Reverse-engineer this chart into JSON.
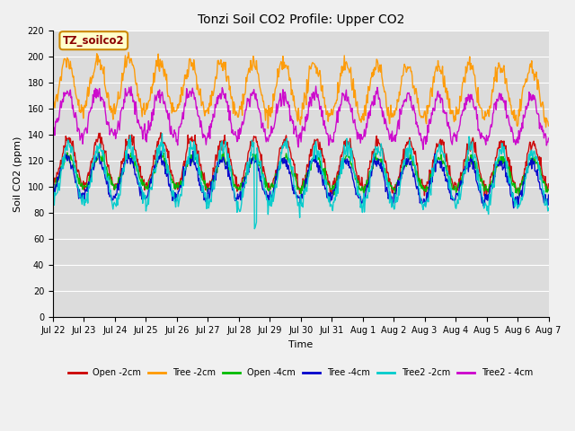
{
  "title": "Tonzi Soil CO2 Profile: Upper CO2",
  "ylabel": "Soil CO2 (ppm)",
  "xlabel": "Time",
  "ylim": [
    0,
    220
  ],
  "yticks": [
    0,
    20,
    40,
    60,
    80,
    100,
    120,
    140,
    160,
    180,
    200,
    220
  ],
  "fig_bg_color": "#f0f0f0",
  "plot_bg_color": "#dcdcdc",
  "grid_color": "#ffffff",
  "series": [
    {
      "label": "Open -2cm",
      "color": "#cc0000",
      "lw": 1.0
    },
    {
      "label": "Tree -2cm",
      "color": "#ff9900",
      "lw": 1.0
    },
    {
      "label": "Open -4cm",
      "color": "#00bb00",
      "lw": 1.0
    },
    {
      "label": "Tree -4cm",
      "color": "#0000cc",
      "lw": 1.0
    },
    {
      "label": "Tree2 -2cm",
      "color": "#00cccc",
      "lw": 1.0
    },
    {
      "label": "Tree2 - 4cm",
      "color": "#cc00cc",
      "lw": 1.0
    }
  ],
  "n_days": 16,
  "points_per_day": 48,
  "annotation_label": "TZ_soilco2",
  "annotation_color": "#8b0000",
  "annotation_bg": "#ffffcc",
  "annotation_border": "#cc8800",
  "title_fontsize": 10,
  "axis_label_fontsize": 8,
  "tick_fontsize": 7,
  "legend_fontsize": 7
}
